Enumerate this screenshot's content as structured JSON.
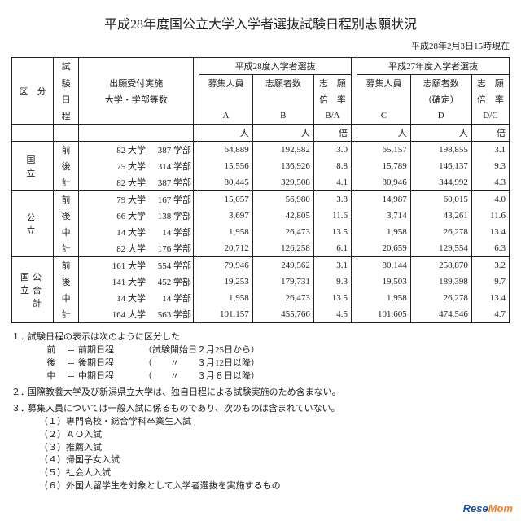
{
  "title": "平成28年度国公立大学入学者選抜試験日程別志願状況",
  "asof": "平成28年2月3日15時現在",
  "headers": {
    "kubun": "区　分",
    "schedule": "試験日程",
    "institutions": "出願受付実施\n大学・学部等数",
    "h28": "平成28度入学者選抜",
    "h27": "平成27年度入学者選抜",
    "capacity": "募集人員",
    "applicants": "志願者数",
    "applicants_c": "志願者数(確定)",
    "ratio": "志　願倍　率",
    "A": "A",
    "B": "B",
    "BA": "B/A",
    "C": "C",
    "D": "D",
    "DC": "D/C",
    "unit_person": "人",
    "unit_times": "倍"
  },
  "groups": [
    {
      "name": "国　立",
      "rows": [
        {
          "sched": "前",
          "uni": "82 大学",
          "fac": "387 学部",
          "A": "64,889",
          "B": "192,582",
          "BA": "3.0",
          "C": "65,157",
          "D": "198,855",
          "DC": "3.1"
        },
        {
          "sched": "後",
          "uni": "75 大学",
          "fac": "314 学部",
          "A": "15,556",
          "B": "136,926",
          "BA": "8.8",
          "C": "15,789",
          "D": "146,137",
          "DC": "9.3"
        },
        {
          "sched": "計",
          "uni": "82 大学",
          "fac": "387 学部",
          "A": "80,445",
          "B": "329,508",
          "BA": "4.1",
          "C": "80,946",
          "D": "344,992",
          "DC": "4.3"
        }
      ]
    },
    {
      "name": "公　立",
      "rows": [
        {
          "sched": "前",
          "uni": "79 大学",
          "fac": "167 学部",
          "A": "15,057",
          "B": "56,980",
          "BA": "3.8",
          "C": "14,987",
          "D": "60,015",
          "DC": "4.0"
        },
        {
          "sched": "後",
          "uni": "66 大学",
          "fac": "138 学部",
          "A": "3,697",
          "B": "42,805",
          "BA": "11.6",
          "C": "3,714",
          "D": "43,261",
          "DC": "11.6"
        },
        {
          "sched": "中",
          "uni": "14 大学",
          "fac": "14 学部",
          "A": "1,958",
          "B": "26,473",
          "BA": "13.5",
          "C": "1,958",
          "D": "26,278",
          "DC": "13.4"
        },
        {
          "sched": "計",
          "uni": "82 大学",
          "fac": "176 学部",
          "A": "20,712",
          "B": "126,258",
          "BA": "6.1",
          "C": "20,659",
          "D": "129,554",
          "DC": "6.3"
        }
      ]
    },
    {
      "name": "国公立合　計",
      "rows": [
        {
          "sched": "前",
          "uni": "161 大学",
          "fac": "554 学部",
          "A": "79,946",
          "B": "249,562",
          "BA": "3.1",
          "C": "80,144",
          "D": "258,870",
          "DC": "3.2"
        },
        {
          "sched": "後",
          "uni": "141 大学",
          "fac": "452 学部",
          "A": "19,253",
          "B": "179,731",
          "BA": "9.3",
          "C": "19,503",
          "D": "189,398",
          "DC": "9.7"
        },
        {
          "sched": "中",
          "uni": "14 大学",
          "fac": "14 学部",
          "A": "1,958",
          "B": "26,473",
          "BA": "13.5",
          "C": "1,958",
          "D": "26,278",
          "DC": "13.4"
        },
        {
          "sched": "計",
          "uni": "164 大学",
          "fac": "563 学部",
          "A": "101,157",
          "B": "455,766",
          "BA": "4.5",
          "C": "101,605",
          "D": "474,546",
          "DC": "4.7"
        }
      ]
    }
  ],
  "notes": {
    "n1": "試験日程の表示は次のように区分した",
    "legend": [
      {
        "k": "前",
        "eq": "＝",
        "v": "前期日程",
        "d": "（試験開始日２月25日から）"
      },
      {
        "k": "後",
        "eq": "＝",
        "v": "後期日程",
        "d": "（　　〃　　３月12日以降）"
      },
      {
        "k": "中",
        "eq": "＝",
        "v": "中期日程",
        "d": "（　　〃　　３月８日以降）"
      }
    ],
    "n2": "国際教養大学及び新潟県立大学は、独自日程による試験実施のため含まない。",
    "n3": "募集人員については一般入試に係るものであり、次のものは含まれていない。",
    "sub": [
      "（１）専門高校・総合学科卒業生入試",
      "（２）ＡＯ入試",
      "（３）推薦入試",
      "（４）帰国子女入試",
      "（５）社会人入試",
      "（６）外国人留学生を対象として入学者選抜を実施するもの"
    ]
  },
  "logo": {
    "a": "Rese",
    "b": "Mom"
  }
}
